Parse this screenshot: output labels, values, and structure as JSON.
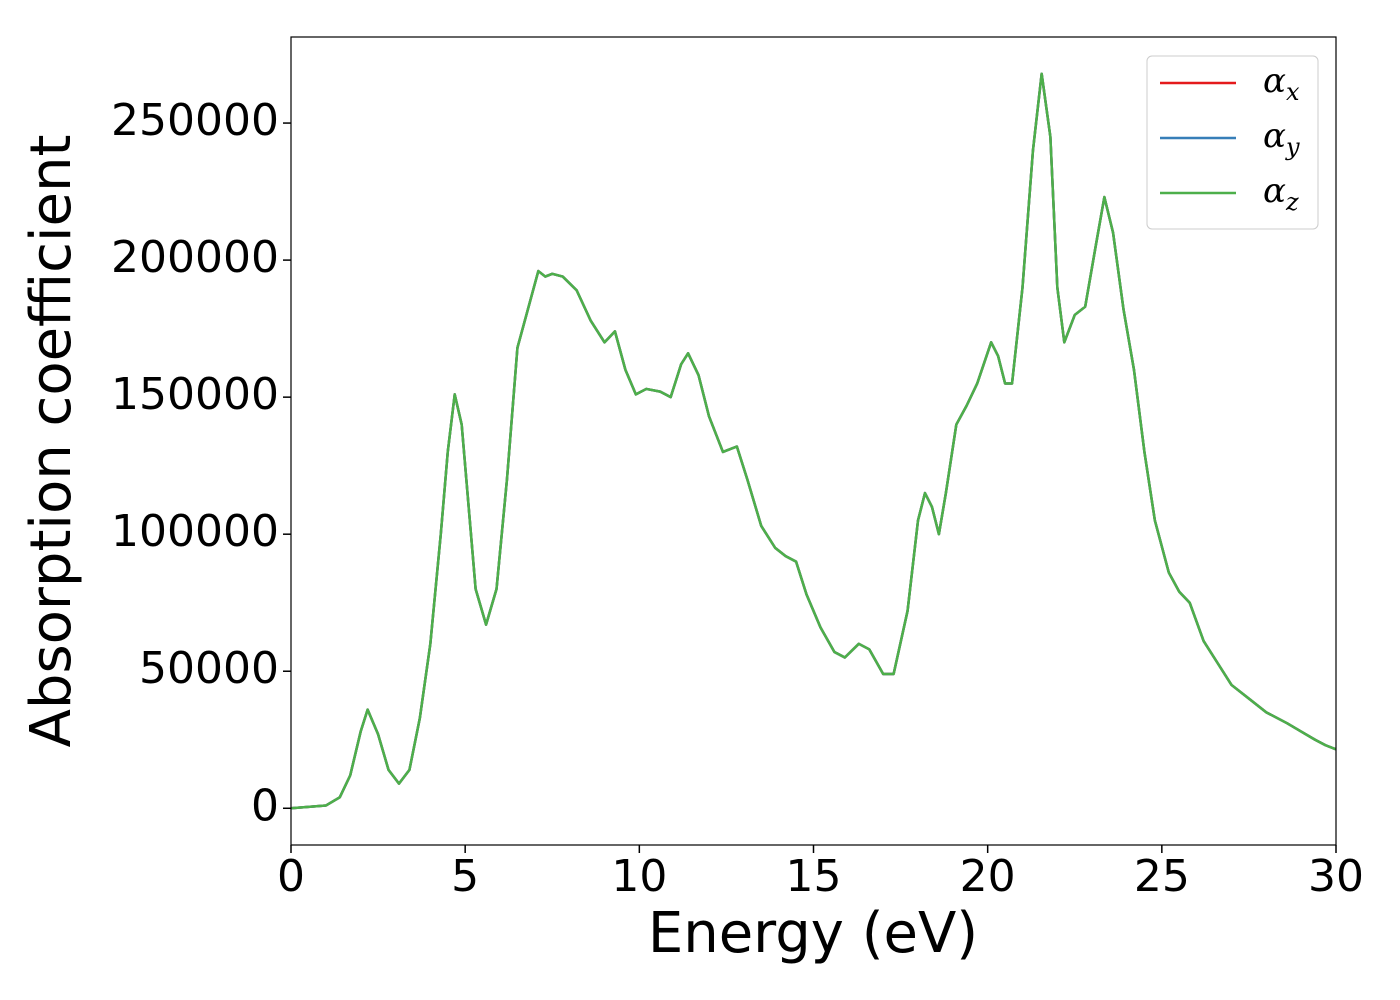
{
  "chart_data": {
    "type": "line",
    "x_label": "Energy (eV)",
    "y_label": "Absorption coefficient",
    "xlim": [
      0,
      30
    ],
    "ylim": [
      -13400,
      281400
    ],
    "xticks": [
      0,
      5,
      10,
      15,
      20,
      25,
      30
    ],
    "yticks": [
      0,
      50000,
      100000,
      150000,
      200000,
      250000
    ],
    "legend": "upper right",
    "x": [
      0,
      1.0,
      1.4,
      1.7,
      2.0,
      2.2,
      2.5,
      2.8,
      3.1,
      3.4,
      3.7,
      4.0,
      4.3,
      4.5,
      4.7,
      4.9,
      5.1,
      5.3,
      5.6,
      5.9,
      6.2,
      6.5,
      6.8,
      7.1,
      7.3,
      7.5,
      7.8,
      8.2,
      8.6,
      9.0,
      9.3,
      9.6,
      9.9,
      10.2,
      10.6,
      10.9,
      11.2,
      11.4,
      11.7,
      12.0,
      12.4,
      12.8,
      13.1,
      13.5,
      13.9,
      14.2,
      14.5,
      14.8,
      15.2,
      15.6,
      15.9,
      16.3,
      16.6,
      17.0,
      17.3,
      17.7,
      18.0,
      18.2,
      18.4,
      18.6,
      18.8,
      19.1,
      19.4,
      19.7,
      20.1,
      20.3,
      20.5,
      20.7,
      21.0,
      21.3,
      21.55,
      21.8,
      22.0,
      22.2,
      22.5,
      22.8,
      23.1,
      23.35,
      23.6,
      23.9,
      24.2,
      24.5,
      24.8,
      25.2,
      25.5,
      25.8,
      26.2,
      26.6,
      27.0,
      27.5,
      28.0,
      28.6,
      29.0,
      29.4,
      29.7,
      30.0
    ],
    "series": [
      {
        "name": "αx",
        "color": "#e41a1c",
        "values": [
          0,
          1000,
          4000,
          12000,
          28000,
          36000,
          27000,
          14000,
          9000,
          14000,
          33000,
          60000,
          100000,
          130000,
          151000,
          140000,
          110000,
          80000,
          67000,
          80000,
          120000,
          168000,
          182000,
          196000,
          194000,
          195000,
          194000,
          189000,
          178000,
          170000,
          174000,
          160000,
          151000,
          153000,
          152000,
          150000,
          162000,
          166000,
          158000,
          143000,
          130000,
          132000,
          120000,
          103000,
          95000,
          92000,
          90000,
          78000,
          66000,
          57000,
          55000,
          60000,
          58000,
          49000,
          49000,
          72000,
          105000,
          115000,
          110000,
          100000,
          115000,
          140000,
          147000,
          155000,
          170000,
          165000,
          155000,
          155000,
          190000,
          240000,
          268000,
          245000,
          190000,
          170000,
          180000,
          183000,
          205000,
          223000,
          210000,
          182000,
          160000,
          130000,
          105000,
          86000,
          79000,
          75000,
          61000,
          53000,
          45000,
          40000,
          35000,
          31000,
          28000,
          25000,
          23000,
          21500
        ]
      },
      {
        "name": "αy",
        "color": "#377eb8",
        "values": [
          0,
          1000,
          4000,
          12000,
          28000,
          36000,
          27000,
          14000,
          9000,
          14000,
          33000,
          60000,
          100000,
          130000,
          151000,
          140000,
          110000,
          80000,
          67000,
          80000,
          120000,
          168000,
          182000,
          196000,
          194000,
          195000,
          194000,
          189000,
          178000,
          170000,
          174000,
          160000,
          151000,
          153000,
          152000,
          150000,
          162000,
          166000,
          158000,
          143000,
          130000,
          132000,
          120000,
          103000,
          95000,
          92000,
          90000,
          78000,
          66000,
          57000,
          55000,
          60000,
          58000,
          49000,
          49000,
          72000,
          105000,
          115000,
          110000,
          100000,
          115000,
          140000,
          147000,
          155000,
          170000,
          165000,
          155000,
          155000,
          190000,
          240000,
          268000,
          245000,
          190000,
          170000,
          180000,
          183000,
          205000,
          223000,
          210000,
          182000,
          160000,
          130000,
          105000,
          86000,
          79000,
          75000,
          61000,
          53000,
          45000,
          40000,
          35000,
          31000,
          28000,
          25000,
          23000,
          21500
        ]
      },
      {
        "name": "αz",
        "color": "#4daf4a",
        "values": [
          0,
          1000,
          4000,
          12000,
          28000,
          36000,
          27000,
          14000,
          9000,
          14000,
          33000,
          60000,
          100000,
          130000,
          151000,
          140000,
          110000,
          80000,
          67000,
          80000,
          120000,
          168000,
          182000,
          196000,
          194000,
          195000,
          194000,
          189000,
          178000,
          170000,
          174000,
          160000,
          151000,
          153000,
          152000,
          150000,
          162000,
          166000,
          158000,
          143000,
          130000,
          132000,
          120000,
          103000,
          95000,
          92000,
          90000,
          78000,
          66000,
          57000,
          55000,
          60000,
          58000,
          49000,
          49000,
          72000,
          105000,
          115000,
          110000,
          100000,
          115000,
          140000,
          147000,
          155000,
          170000,
          165000,
          155000,
          155000,
          190000,
          240000,
          268000,
          245000,
          190000,
          170000,
          180000,
          183000,
          205000,
          223000,
          210000,
          182000,
          160000,
          130000,
          105000,
          86000,
          79000,
          75000,
          61000,
          53000,
          45000,
          40000,
          35000,
          31000,
          28000,
          25000,
          23000,
          21500
        ]
      }
    ]
  }
}
